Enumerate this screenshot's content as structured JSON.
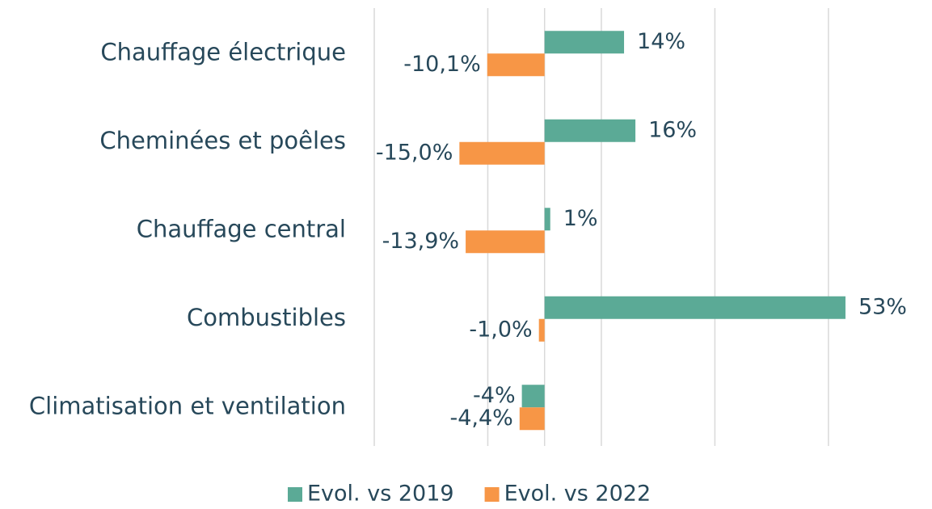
{
  "chart_data": {
    "type": "hbar",
    "categories": [
      "Chauffage électrique",
      "Cheminées et poêles",
      "Chauffage central",
      "Combustibles",
      "Climatisation et ventilation"
    ],
    "series": [
      {
        "name": "Evol. vs 2019",
        "color": "#5baa96",
        "values": [
          14,
          16,
          1,
          53,
          -4
        ],
        "value_labels": [
          "14%",
          "16%",
          "1%",
          "53%",
          "-4%"
        ]
      },
      {
        "name": "Evol. vs 2022",
        "color": "#f79646",
        "values": [
          -10.1,
          -15.0,
          -13.9,
          -1.0,
          -4.4
        ],
        "value_labels": [
          "-10,1%",
          "-15,0%",
          "-13,9%",
          "-1,0%",
          "-4,4%"
        ]
      }
    ],
    "xlim": [
      -30,
      55
    ],
    "xticks": [
      -30,
      -10,
      10,
      30,
      50
    ],
    "grid": true,
    "legend": "bottom"
  }
}
